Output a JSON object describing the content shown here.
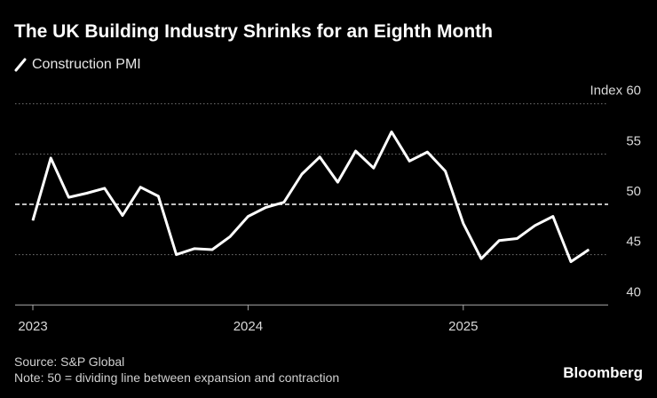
{
  "chart_data": {
    "type": "line",
    "title": "The UK Building Industry Shrinks for an Eighth Month",
    "ylabel": "Index",
    "ylim": [
      40,
      60
    ],
    "yticks": [
      40,
      45,
      50,
      55,
      60
    ],
    "xticks": [
      "2023",
      "2024",
      "2025"
    ],
    "reference_line": 50,
    "grid": true,
    "legend": "top-left",
    "series": [
      {
        "name": "Construction PMI",
        "color": "#ffffff",
        "x": [
          "2023-01",
          "2023-02",
          "2023-03",
          "2023-04",
          "2023-05",
          "2023-06",
          "2023-07",
          "2023-08",
          "2023-09",
          "2023-10",
          "2023-11",
          "2023-12",
          "2024-01",
          "2024-02",
          "2024-03",
          "2024-04",
          "2024-05",
          "2024-06",
          "2024-07",
          "2024-08",
          "2024-09",
          "2024-10",
          "2024-11",
          "2024-12",
          "2025-01",
          "2025-02",
          "2025-03",
          "2025-04",
          "2025-05",
          "2025-06",
          "2025-07",
          "2025-08"
        ],
        "values": [
          48.4,
          54.6,
          50.7,
          51.1,
          51.6,
          48.9,
          51.7,
          50.8,
          45.0,
          45.6,
          45.5,
          46.8,
          48.8,
          49.7,
          50.2,
          53.0,
          54.7,
          52.2,
          55.3,
          53.6,
          57.2,
          54.3,
          55.2,
          53.3,
          48.1,
          44.6,
          46.4,
          46.6,
          47.9,
          48.8,
          44.3,
          45.5
        ]
      }
    ]
  },
  "footer": {
    "source": "Source: S&P Global",
    "note": "Note: 50 = dividing line between expansion and contraction",
    "brand": "Bloomberg"
  }
}
